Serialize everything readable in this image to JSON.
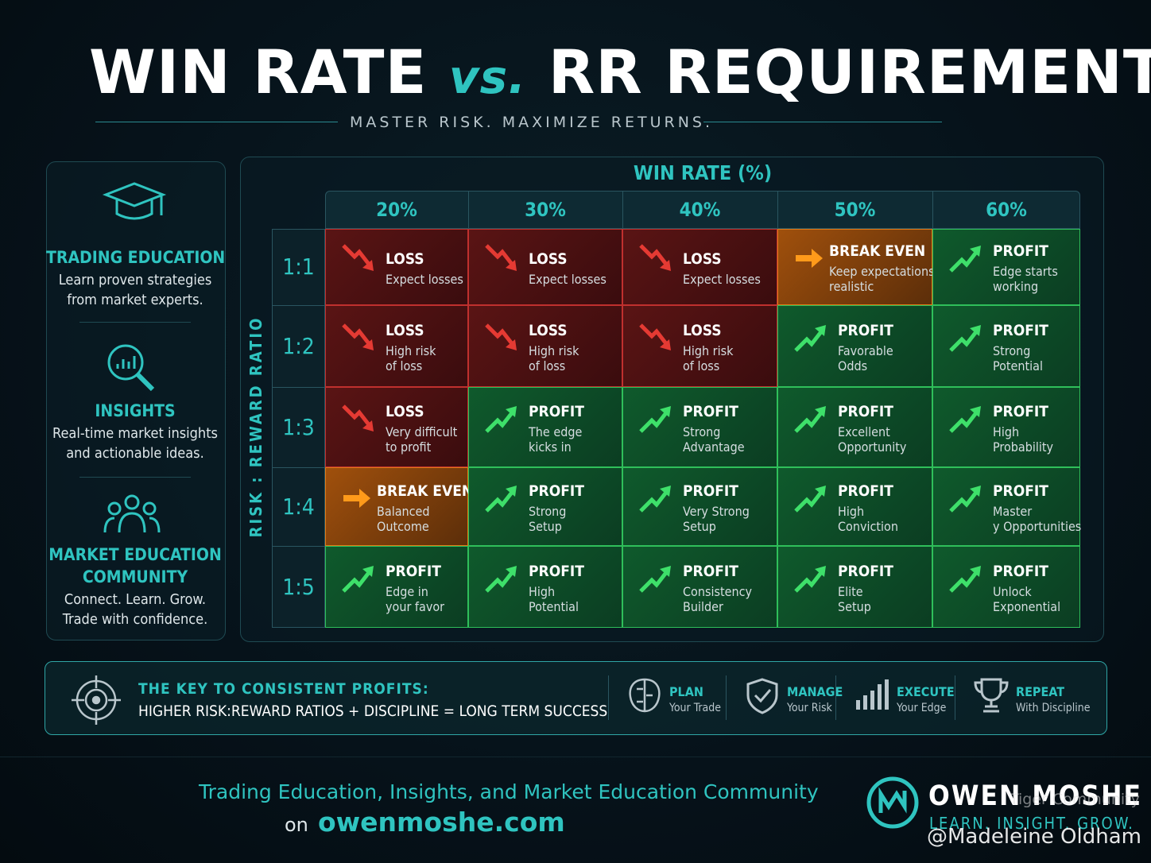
{
  "header": {
    "title_start": "WIN RATE",
    "title_vs": "vs.",
    "title_end": "RR REQUIREMENT",
    "subtitle": "MASTER RISK. MAXIMIZE RETURNS."
  },
  "sidebar": [
    {
      "title": [
        "TRADING EDUCATION"
      ],
      "text": [
        "Learn proven strategies",
        "from market experts."
      ]
    },
    {
      "title": [
        "INSIGHTS"
      ],
      "text": [
        "Real-time market insights",
        "and actionable ideas."
      ]
    },
    {
      "title": [
        "MARKET EDUCATION",
        "COMMUNITY"
      ],
      "text": [
        "Connect. Learn. Grow.",
        "Trade with confidence."
      ]
    }
  ],
  "grid": {
    "column_header": "WIN RATE (%)",
    "row_header": "RISK : REWARD RATIO",
    "columns": [
      "20%",
      "30%",
      "40%",
      "50%",
      "60%"
    ],
    "rows": [
      {
        "label": "1:1",
        "cells": [
          {
            "trend": "down",
            "status": "LOSS",
            "note": [
              "Expect losses"
            ]
          },
          {
            "trend": "down",
            "status": "LOSS",
            "note": [
              "Expect losses"
            ]
          },
          {
            "trend": "down",
            "status": "LOSS",
            "note": [
              "Expect losses"
            ]
          },
          {
            "trend": "flat",
            "status": "BREAK EVEN",
            "note": [
              "Keep expectations",
              "realistic"
            ]
          },
          {
            "trend": "up",
            "status": "PROFIT",
            "note": [
              "Edge starts",
              "working"
            ]
          }
        ]
      },
      {
        "label": "1:2",
        "cells": [
          {
            "trend": "down",
            "status": "LOSS",
            "note": [
              "High risk",
              "of loss"
            ]
          },
          {
            "trend": "down",
            "status": "LOSS",
            "note": [
              "High risk",
              "of loss"
            ]
          },
          {
            "trend": "down",
            "status": "LOSS",
            "note": [
              "High risk",
              "of loss"
            ]
          },
          {
            "trend": "up",
            "status": "PROFIT",
            "note": [
              "Favorable",
              "Odds"
            ]
          },
          {
            "trend": "up",
            "status": "PROFIT",
            "note": [
              "Strong",
              "Potential"
            ]
          }
        ]
      },
      {
        "label": "1:3",
        "cells": [
          {
            "trend": "down",
            "status": "LOSS",
            "note": [
              "Very difficult",
              "to profit"
            ]
          },
          {
            "trend": "up",
            "status": "PROFIT",
            "note": [
              "The edge",
              "kicks in"
            ]
          },
          {
            "trend": "up",
            "status": "PROFIT",
            "note": [
              "Strong",
              "Advantage"
            ]
          },
          {
            "trend": "up",
            "status": "PROFIT",
            "note": [
              "Excellent",
              "Opportunity"
            ]
          },
          {
            "trend": "up",
            "status": "PROFIT",
            "note": [
              "High",
              "Probability"
            ]
          }
        ]
      },
      {
        "label": "1:4",
        "cells": [
          {
            "trend": "flat",
            "status": "BREAK EVEN",
            "note": [
              "Balanced",
              "Outcome"
            ]
          },
          {
            "trend": "up",
            "status": "PROFIT",
            "note": [
              "Strong",
              "Setup"
            ]
          },
          {
            "trend": "up",
            "status": "PROFIT",
            "note": [
              "Very Strong",
              "Setup"
            ]
          },
          {
            "trend": "up",
            "status": "PROFIT",
            "note": [
              "High",
              "Conviction"
            ]
          },
          {
            "trend": "up",
            "status": "PROFIT",
            "note": [
              "Master",
              "y Opportunities"
            ]
          }
        ]
      },
      {
        "label": "1:5",
        "cells": [
          {
            "trend": "up",
            "status": "PROFIT",
            "note": [
              "Edge in",
              "your favor"
            ]
          },
          {
            "trend": "up",
            "status": "PROFIT",
            "note": [
              "High",
              "Potential"
            ]
          },
          {
            "trend": "up",
            "status": "PROFIT",
            "note": [
              "Consistency",
              "Builder"
            ]
          },
          {
            "trend": "up",
            "status": "PROFIT",
            "note": [
              "Elite",
              "Setup"
            ]
          },
          {
            "trend": "up",
            "status": "PROFIT",
            "note": [
              "Unlock",
              "Exponential"
            ]
          }
        ]
      }
    ]
  },
  "key": {
    "title": "THE KEY TO CONSISTENT PROFITS:",
    "text": "HIGHER RISK:REWARD RATIOS + DISCIPLINE = LONG TERM SUCCESS",
    "steps": [
      {
        "title": "PLAN",
        "sub": "Your Trade"
      },
      {
        "title": "MANAGE",
        "sub": "Your Risk"
      },
      {
        "title": "EXECUTE",
        "sub": "Your Edge"
      },
      {
        "title": "REPEAT",
        "sub": "With Discipline"
      }
    ]
  },
  "footer": {
    "line": "Trading Education, Insights, and Market Education Community",
    "on": "on",
    "url": "owenmoshe.com",
    "brand": "OWEN MOSHE",
    "tagline": "LEARN. INSIGHT. GROW."
  },
  "watermark": {
    "site": "Tiger Community",
    "user": "@Madeleine Oldham"
  }
}
